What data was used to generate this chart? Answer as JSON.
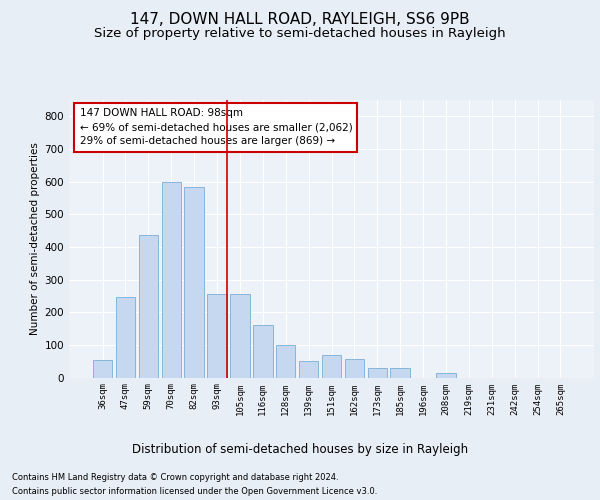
{
  "title": "147, DOWN HALL ROAD, RAYLEIGH, SS6 9PB",
  "subtitle": "Size of property relative to semi-detached houses in Rayleigh",
  "xlabel": "Distribution of semi-detached houses by size in Rayleigh",
  "ylabel": "Number of semi-detached properties",
  "footnote1": "Contains HM Land Registry data © Crown copyright and database right 2024.",
  "footnote2": "Contains public sector information licensed under the Open Government Licence v3.0.",
  "annotation_line1": "147 DOWN HALL ROAD: 98sqm",
  "annotation_line2": "← 69% of semi-detached houses are smaller (2,062)",
  "annotation_line3": "29% of semi-detached houses are larger (869) →",
  "categories": [
    "36sqm",
    "47sqm",
    "59sqm",
    "70sqm",
    "82sqm",
    "93sqm",
    "105sqm",
    "116sqm",
    "128sqm",
    "139sqm",
    "151sqm",
    "162sqm",
    "173sqm",
    "185sqm",
    "196sqm",
    "208sqm",
    "219sqm",
    "231sqm",
    "242sqm",
    "254sqm",
    "265sqm"
  ],
  "values": [
    55,
    248,
    435,
    600,
    585,
    255,
    255,
    160,
    100,
    50,
    68,
    58,
    28,
    28,
    0,
    15,
    0,
    0,
    0,
    0,
    0
  ],
  "bar_color": "#c5d8f0",
  "bar_edge_color": "#7bafd4",
  "red_line_index": 5.5,
  "ylim": [
    0,
    850
  ],
  "yticks": [
    0,
    100,
    200,
    300,
    400,
    500,
    600,
    700,
    800
  ],
  "bg_color": "#e8eef5",
  "plot_bg_color": "#edf2f9",
  "grid_color": "#ffffff",
  "title_fontsize": 11,
  "subtitle_fontsize": 9.5,
  "xlabel_fontsize": 8.5,
  "ylabel_fontsize": 7.5,
  "annotation_border_color": "#cc0000",
  "annotation_fontsize": 7.5
}
